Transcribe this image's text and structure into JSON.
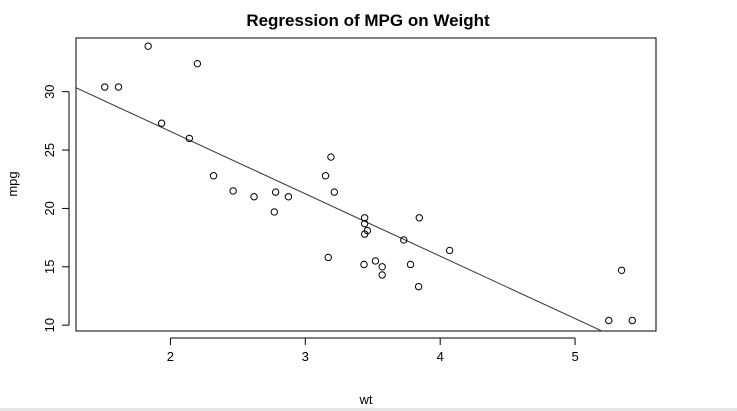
{
  "chart_data": {
    "type": "scatter",
    "title": "Regression of MPG on Weight",
    "xlabel": "wt",
    "ylabel": "mpg",
    "xlim": [
      1.3,
      5.6
    ],
    "ylim": [
      9.5,
      34.6
    ],
    "xticks": [
      2,
      3,
      4,
      5
    ],
    "yticks": [
      10,
      15,
      20,
      25,
      30
    ],
    "grid": false,
    "points": [
      {
        "x": 1.513,
        "y": 30.4
      },
      {
        "x": 1.615,
        "y": 30.4
      },
      {
        "x": 1.835,
        "y": 33.9
      },
      {
        "x": 1.935,
        "y": 27.3
      },
      {
        "x": 2.14,
        "y": 26.0
      },
      {
        "x": 2.2,
        "y": 32.4
      },
      {
        "x": 2.32,
        "y": 22.8
      },
      {
        "x": 2.465,
        "y": 21.5
      },
      {
        "x": 2.62,
        "y": 21.0
      },
      {
        "x": 2.77,
        "y": 19.7
      },
      {
        "x": 2.78,
        "y": 21.4
      },
      {
        "x": 2.875,
        "y": 21.0
      },
      {
        "x": 3.15,
        "y": 22.8
      },
      {
        "x": 3.17,
        "y": 15.8
      },
      {
        "x": 3.19,
        "y": 24.4
      },
      {
        "x": 3.215,
        "y": 21.4
      },
      {
        "x": 3.435,
        "y": 15.2
      },
      {
        "x": 3.44,
        "y": 18.7
      },
      {
        "x": 3.44,
        "y": 19.2
      },
      {
        "x": 3.44,
        "y": 17.8
      },
      {
        "x": 3.46,
        "y": 18.1
      },
      {
        "x": 3.52,
        "y": 15.5
      },
      {
        "x": 3.57,
        "y": 15.0
      },
      {
        "x": 3.57,
        "y": 14.3
      },
      {
        "x": 3.73,
        "y": 17.3
      },
      {
        "x": 3.78,
        "y": 15.2
      },
      {
        "x": 3.84,
        "y": 13.3
      },
      {
        "x": 3.845,
        "y": 19.2
      },
      {
        "x": 4.07,
        "y": 16.4
      },
      {
        "x": 5.25,
        "y": 10.4
      },
      {
        "x": 5.345,
        "y": 14.7
      },
      {
        "x": 5.424,
        "y": 10.4
      }
    ],
    "regression_line": {
      "intercept": 37.285,
      "slope": -5.344
    }
  }
}
